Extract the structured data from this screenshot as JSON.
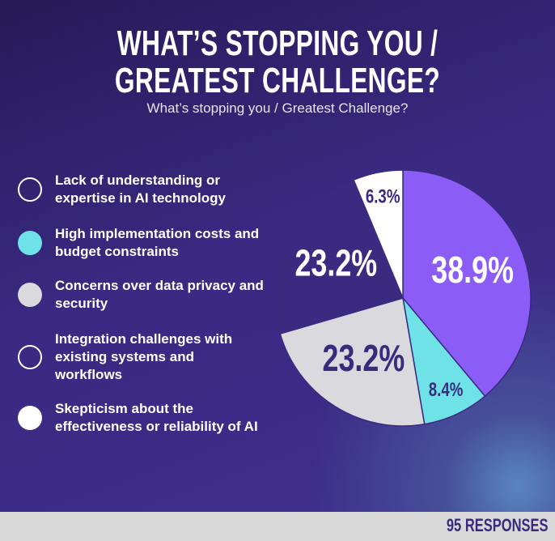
{
  "chart_data": {
    "type": "pie",
    "title": [
      "WHAT’S STOPPING YOU /",
      "GREATEST CHALLENGE?"
    ],
    "subtitle": "What’s stopping you / Greatest Challenge?",
    "categories": [
      "Lack of understanding or expertise in AI technology",
      "High implementation costs and budget constraints",
      "Concerns over data privacy and security",
      "Integration challenges with existing systems and workflows",
      "Skepticism about the effectiveness or reliability of AI"
    ],
    "values": [
      38.9,
      8.4,
      23.2,
      23.2,
      6.3
    ],
    "value_labels": [
      "38.9%",
      "8.4%",
      "23.2%",
      "23.2%",
      "6.3%"
    ],
    "colors": [
      "#8c5cf6",
      "#6fe2e8",
      "#d9d9de",
      "#3a2a80",
      "#ffffff"
    ],
    "footer": "95 RESPONSES"
  }
}
